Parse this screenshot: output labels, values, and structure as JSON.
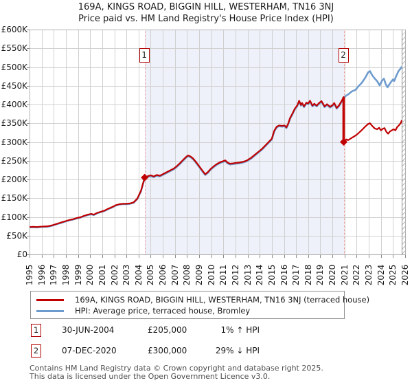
{
  "header": {
    "title": "169A, KINGS ROAD, BIGGIN HILL, WESTERHAM, TN16 3NJ",
    "subtitle": "Price paid vs. HM Land Registry's House Price Index (HPI)"
  },
  "legend": {
    "entries": [
      {
        "label": "169A, KINGS ROAD, BIGGIN HILL, WESTERHAM, TN16 3NJ (terraced house)",
        "color": "#c00000"
      },
      {
        "label": "HPI: Average price, terraced house, Bromley",
        "color": "#6e9bce"
      }
    ]
  },
  "transactions": [
    {
      "num": "1",
      "date": "30-JUN-2004",
      "price": "£205,000",
      "hpi_delta": "1% ↑ HPI"
    },
    {
      "num": "2",
      "date": "07-DEC-2020",
      "price": "£300,000",
      "hpi_delta": "29% ↓ HPI"
    }
  ],
  "footer": {
    "line1": "Contains HM Land Registry data © Crown copyright and database right 2025.",
    "line2": "This data is licensed under the Open Government Licence v3.0."
  },
  "chart_data": {
    "type": "line",
    "title": "169A, KINGS ROAD, BIGGIN HILL, WESTERHAM, TN16 3NJ",
    "subtitle": "Price paid vs. HM Land Registry's House Price Index (HPI)",
    "xlabel": "",
    "ylabel": "",
    "x_range": [
      1995,
      2026
    ],
    "y_range_k": [
      0,
      600
    ],
    "grid": true,
    "legend_position": "bottom",
    "x_ticks": [
      1995,
      1996,
      1997,
      1998,
      1999,
      2000,
      2001,
      2002,
      2003,
      2004,
      2005,
      2006,
      2007,
      2008,
      2009,
      2010,
      2011,
      2012,
      2013,
      2014,
      2015,
      2016,
      2017,
      2018,
      2019,
      2020,
      2021,
      2022,
      2023,
      2024,
      2025,
      2026
    ],
    "y_ticks": [
      {
        "value_k": 600,
        "label": "£600K"
      },
      {
        "value_k": 550,
        "label": "£550K"
      },
      {
        "value_k": 500,
        "label": "£500K"
      },
      {
        "value_k": 450,
        "label": "£450K"
      },
      {
        "value_k": 400,
        "label": "£400K"
      },
      {
        "value_k": 350,
        "label": "£350K"
      },
      {
        "value_k": 300,
        "label": "£300K"
      },
      {
        "value_k": 250,
        "label": "£250K"
      },
      {
        "value_k": 200,
        "label": "£200K"
      },
      {
        "value_k": 150,
        "label": "£150K"
      },
      {
        "value_k": 100,
        "label": "£100K"
      },
      {
        "value_k": 50,
        "label": "£50K"
      },
      {
        "value_k": 0,
        "label": "£0"
      }
    ],
    "shaded_region_years": [
      2004.5,
      2020.93
    ],
    "future_region_start_year": 2025.72,
    "sale_markers": [
      {
        "label": "1",
        "year": 2004.5,
        "value_k": 205,
        "date": "30-JUN-2004",
        "price": "£205,000",
        "vs_hpi": "1% ↑ HPI"
      },
      {
        "label": "2",
        "year": 2020.93,
        "value_k": 300,
        "date": "07-DEC-2020",
        "price": "£300,000",
        "vs_hpi": "29% ↓ HPI",
        "drop_from_k": 420
      }
    ],
    "series": [
      {
        "name": "HPI: Average price, terraced house, Bromley",
        "color": "#6e9bce",
        "width": 2.6,
        "points_year_value_k": [
          [
            1995,
            72
          ],
          [
            1995.3,
            72.5
          ],
          [
            1995.6,
            72
          ],
          [
            1995.9,
            73
          ],
          [
            1996.2,
            73.5
          ],
          [
            1996.5,
            74
          ],
          [
            1996.8,
            76
          ],
          [
            1997.1,
            79
          ],
          [
            1997.4,
            82
          ],
          [
            1997.7,
            85
          ],
          [
            1998,
            88
          ],
          [
            1998.3,
            91
          ],
          [
            1998.6,
            93
          ],
          [
            1998.9,
            96
          ],
          [
            1999.2,
            98
          ],
          [
            1999.5,
            102
          ],
          [
            1999.8,
            105
          ],
          [
            2000.1,
            107
          ],
          [
            2000.3,
            105
          ],
          [
            2000.6,
            110
          ],
          [
            2000.9,
            113
          ],
          [
            2001.2,
            116
          ],
          [
            2001.5,
            121
          ],
          [
            2001.8,
            125
          ],
          [
            2002.1,
            130
          ],
          [
            2002.4,
            133
          ],
          [
            2002.7,
            134
          ],
          [
            2003,
            134
          ],
          [
            2003.3,
            135
          ],
          [
            2003.6,
            138
          ],
          [
            2003.9,
            148
          ],
          [
            2004.2,
            168
          ],
          [
            2004.5,
            203
          ],
          [
            2004.7,
            206
          ],
          [
            2005,
            209
          ],
          [
            2005.25,
            206
          ],
          [
            2005.5,
            210
          ],
          [
            2005.75,
            208
          ],
          [
            2006,
            212
          ],
          [
            2006.3,
            217
          ],
          [
            2006.6,
            222
          ],
          [
            2006.9,
            227
          ],
          [
            2007.1,
            232
          ],
          [
            2007.4,
            241
          ],
          [
            2007.7,
            251
          ],
          [
            2007.95,
            259
          ],
          [
            2008.1,
            262
          ],
          [
            2008.3,
            259
          ],
          [
            2008.5,
            254
          ],
          [
            2008.8,
            242
          ],
          [
            2009.1,
            229
          ],
          [
            2009.35,
            218
          ],
          [
            2009.5,
            212
          ],
          [
            2009.7,
            217
          ],
          [
            2009.95,
            226
          ],
          [
            2010.2,
            233
          ],
          [
            2010.5,
            240
          ],
          [
            2010.8,
            245
          ],
          [
            2011,
            247
          ],
          [
            2011.15,
            249
          ],
          [
            2011.35,
            243
          ],
          [
            2011.55,
            240
          ],
          [
            2011.8,
            241
          ],
          [
            2012,
            242
          ],
          [
            2012.3,
            243
          ],
          [
            2012.6,
            245
          ],
          [
            2012.9,
            248
          ],
          [
            2013.1,
            252
          ],
          [
            2013.3,
            256
          ],
          [
            2013.6,
            264
          ],
          [
            2013.9,
            272
          ],
          [
            2014.2,
            280
          ],
          [
            2014.5,
            290
          ],
          [
            2014.8,
            300
          ],
          [
            2015,
            307
          ],
          [
            2015.2,
            328
          ],
          [
            2015.4,
            339
          ],
          [
            2015.6,
            342
          ],
          [
            2015.85,
            341
          ],
          [
            2016.05,
            342
          ],
          [
            2016.2,
            337
          ],
          [
            2016.35,
            347
          ],
          [
            2016.5,
            362
          ],
          [
            2016.7,
            374
          ],
          [
            2016.9,
            387
          ],
          [
            2017.1,
            396
          ],
          [
            2017.25,
            408
          ],
          [
            2017.4,
            397
          ],
          [
            2017.5,
            402
          ],
          [
            2017.65,
            393
          ],
          [
            2017.85,
            403
          ],
          [
            2018,
            401
          ],
          [
            2018.15,
            408
          ],
          [
            2018.35,
            395
          ],
          [
            2018.5,
            400
          ],
          [
            2018.7,
            395
          ],
          [
            2018.9,
            402
          ],
          [
            2019.1,
            407
          ],
          [
            2019.35,
            393
          ],
          [
            2019.55,
            399
          ],
          [
            2019.8,
            392
          ],
          [
            2020,
            396
          ],
          [
            2020.15,
            402
          ],
          [
            2020.35,
            389
          ],
          [
            2020.55,
            396
          ],
          [
            2020.75,
            407
          ],
          [
            2020.93,
            418
          ],
          [
            2021.1,
            423
          ],
          [
            2021.3,
            427
          ],
          [
            2021.6,
            435
          ],
          [
            2021.9,
            439
          ],
          [
            2022.1,
            447
          ],
          [
            2022.4,
            457
          ],
          [
            2022.7,
            471
          ],
          [
            2022.95,
            486
          ],
          [
            2023.1,
            489
          ],
          [
            2023.3,
            477
          ],
          [
            2023.5,
            469
          ],
          [
            2023.7,
            462
          ],
          [
            2023.9,
            451
          ],
          [
            2024.1,
            464
          ],
          [
            2024.25,
            469
          ],
          [
            2024.4,
            454
          ],
          [
            2024.55,
            446
          ],
          [
            2024.7,
            454
          ],
          [
            2024.85,
            461
          ],
          [
            2025,
            467
          ],
          [
            2025.1,
            463
          ],
          [
            2025.25,
            475
          ],
          [
            2025.45,
            489
          ],
          [
            2025.6,
            495
          ],
          [
            2025.72,
            501
          ]
        ]
      },
      {
        "name": "169A, KINGS ROAD, BIGGIN HILL, WESTERHAM, TN16 3NJ (terraced house)",
        "color": "#c00000",
        "width": 2.2,
        "points_year_value_k": [
          [
            1995,
            73
          ],
          [
            1995.3,
            73.5
          ],
          [
            1995.6,
            73
          ],
          [
            1995.9,
            74
          ],
          [
            1996.2,
            74.5
          ],
          [
            1996.5,
            75
          ],
          [
            1996.8,
            77
          ],
          [
            1997.1,
            80
          ],
          [
            1997.4,
            83
          ],
          [
            1997.7,
            86
          ],
          [
            1998,
            89
          ],
          [
            1998.3,
            92
          ],
          [
            1998.6,
            94
          ],
          [
            1998.9,
            97
          ],
          [
            1999.2,
            99
          ],
          [
            1999.5,
            103
          ],
          [
            1999.8,
            106
          ],
          [
            2000.1,
            108
          ],
          [
            2000.3,
            106
          ],
          [
            2000.6,
            111
          ],
          [
            2000.9,
            114
          ],
          [
            2001.2,
            117
          ],
          [
            2001.5,
            122
          ],
          [
            2001.8,
            126
          ],
          [
            2002.1,
            131
          ],
          [
            2002.4,
            134
          ],
          [
            2002.7,
            135
          ],
          [
            2003,
            135
          ],
          [
            2003.3,
            136
          ],
          [
            2003.6,
            139
          ],
          [
            2003.9,
            149
          ],
          [
            2004.2,
            170
          ],
          [
            2004.5,
            205
          ],
          [
            2004.7,
            208
          ],
          [
            2005,
            211
          ],
          [
            2005.25,
            208
          ],
          [
            2005.5,
            212
          ],
          [
            2005.75,
            210
          ],
          [
            2006,
            214
          ],
          [
            2006.3,
            219
          ],
          [
            2006.6,
            224
          ],
          [
            2006.9,
            229
          ],
          [
            2007.1,
            234
          ],
          [
            2007.4,
            243
          ],
          [
            2007.7,
            253
          ],
          [
            2007.95,
            261
          ],
          [
            2008.1,
            264
          ],
          [
            2008.3,
            261
          ],
          [
            2008.5,
            256
          ],
          [
            2008.8,
            244
          ],
          [
            2009.1,
            231
          ],
          [
            2009.35,
            220
          ],
          [
            2009.5,
            214
          ],
          [
            2009.7,
            219
          ],
          [
            2009.95,
            228
          ],
          [
            2010.2,
            235
          ],
          [
            2010.5,
            242
          ],
          [
            2010.8,
            247
          ],
          [
            2011,
            249
          ],
          [
            2011.15,
            251
          ],
          [
            2011.35,
            245
          ],
          [
            2011.55,
            242
          ],
          [
            2011.8,
            243
          ],
          [
            2012,
            244
          ],
          [
            2012.3,
            245
          ],
          [
            2012.6,
            247
          ],
          [
            2012.9,
            250
          ],
          [
            2013.1,
            254
          ],
          [
            2013.3,
            258
          ],
          [
            2013.6,
            266
          ],
          [
            2013.9,
            274
          ],
          [
            2014.2,
            282
          ],
          [
            2014.5,
            292
          ],
          [
            2014.8,
            302
          ],
          [
            2015,
            309
          ],
          [
            2015.2,
            330
          ],
          [
            2015.4,
            341
          ],
          [
            2015.6,
            344
          ],
          [
            2015.85,
            343
          ],
          [
            2016.05,
            344
          ],
          [
            2016.2,
            339
          ],
          [
            2016.35,
            349
          ],
          [
            2016.5,
            364
          ],
          [
            2016.7,
            376
          ],
          [
            2016.9,
            389
          ],
          [
            2017.1,
            398
          ],
          [
            2017.25,
            410
          ],
          [
            2017.4,
            399
          ],
          [
            2017.5,
            404
          ],
          [
            2017.65,
            395
          ],
          [
            2017.85,
            405
          ],
          [
            2018,
            403
          ],
          [
            2018.15,
            410
          ],
          [
            2018.35,
            397
          ],
          [
            2018.5,
            402
          ],
          [
            2018.7,
            397
          ],
          [
            2018.9,
            404
          ],
          [
            2019.1,
            409
          ],
          [
            2019.35,
            395
          ],
          [
            2019.55,
            401
          ],
          [
            2019.8,
            394
          ],
          [
            2020,
            398
          ],
          [
            2020.15,
            404
          ],
          [
            2020.35,
            391
          ],
          [
            2020.55,
            398
          ],
          [
            2020.75,
            409
          ],
          [
            2020.93,
            420
          ],
          [
            2020.93,
            300
          ],
          [
            2021.05,
            302
          ],
          [
            2021.15,
            307
          ],
          [
            2021.3,
            305
          ],
          [
            2021.5,
            309
          ],
          [
            2021.7,
            313
          ],
          [
            2021.9,
            317
          ],
          [
            2022.1,
            322
          ],
          [
            2022.4,
            331
          ],
          [
            2022.7,
            341
          ],
          [
            2022.95,
            348
          ],
          [
            2023.1,
            350
          ],
          [
            2023.3,
            342
          ],
          [
            2023.5,
            336
          ],
          [
            2023.7,
            334
          ],
          [
            2023.85,
            338
          ],
          [
            2024,
            331
          ],
          [
            2024.15,
            335
          ],
          [
            2024.3,
            337
          ],
          [
            2024.45,
            327
          ],
          [
            2024.6,
            322
          ],
          [
            2024.75,
            328
          ],
          [
            2024.9,
            331
          ],
          [
            2025.05,
            334
          ],
          [
            2025.2,
            331
          ],
          [
            2025.35,
            340
          ],
          [
            2025.5,
            345
          ],
          [
            2025.65,
            351
          ],
          [
            2025.72,
            358
          ]
        ]
      }
    ]
  }
}
